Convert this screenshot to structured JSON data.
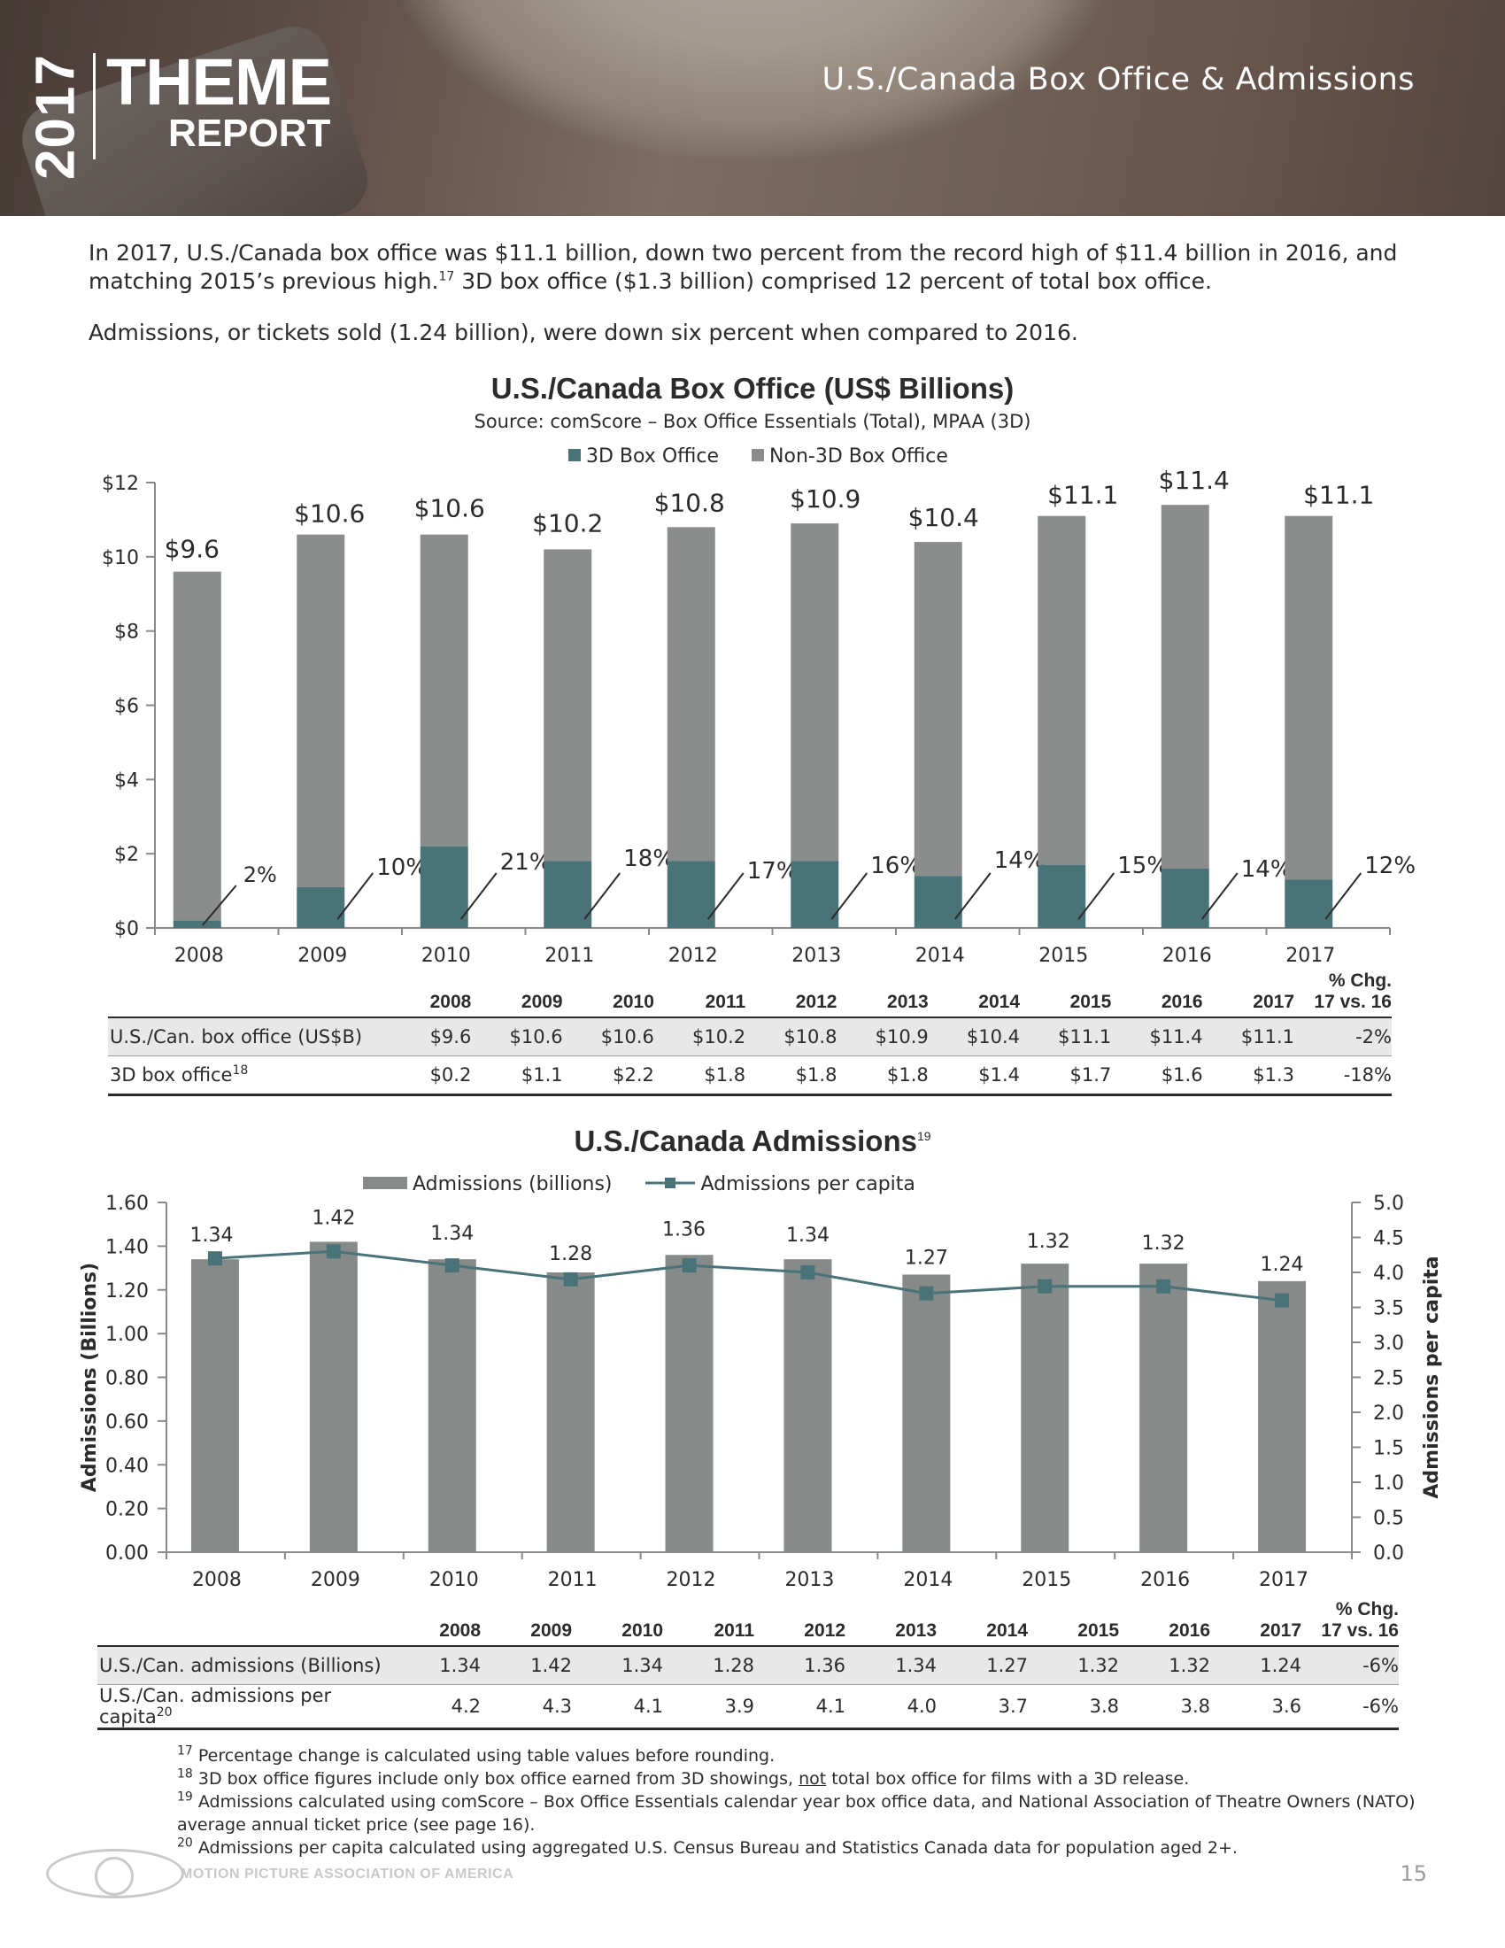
{
  "header": {
    "year": "2017",
    "logo_line1": "THEME",
    "logo_line2": "REPORT",
    "section_title": "U.S./Canada Box Office & Admissions"
  },
  "intro": {
    "p1_a": "In 2017, U.S./Canada box office was $11.1 billion, down two percent from the record high of $11.4 billion in 2016, and matching 2015’s previous high.",
    "p1_sup": "17",
    "p1_b": " 3D box office ($1.3 billion) comprised 12 percent of total box office.",
    "p2": "Admissions, or tickets sold (1.24 billion), were down six percent when compared to 2016."
  },
  "chart_data": [
    {
      "type": "bar",
      "stacked": true,
      "title": "U.S./Canada Box Office (US$ Billions)",
      "subtitle": "Source: comScore – Box Office Essentials (Total), MPAA (3D)",
      "categories": [
        "2008",
        "2009",
        "2010",
        "2011",
        "2012",
        "2013",
        "2014",
        "2015",
        "2016",
        "2017"
      ],
      "series": [
        {
          "name": "3D Box Office",
          "color": "#4a7378",
          "values": [
            0.2,
            1.1,
            2.2,
            1.8,
            1.8,
            1.8,
            1.4,
            1.7,
            1.6,
            1.3
          ]
        },
        {
          "name": "Non-3D Box Office",
          "color": "#8a8d8c",
          "values": [
            9.4,
            9.5,
            8.4,
            8.4,
            9.0,
            9.1,
            9.0,
            9.4,
            9.8,
            9.8
          ]
        }
      ],
      "totals": [
        9.6,
        10.6,
        10.6,
        10.2,
        10.8,
        10.9,
        10.4,
        11.1,
        11.4,
        11.1
      ],
      "total_labels": [
        "$9.6",
        "$10.6",
        "$10.6",
        "$10.2",
        "$10.8",
        "$10.9",
        "$10.4",
        "$11.1",
        "$11.4",
        "$11.1"
      ],
      "share_3d_labels": [
        "2%",
        "10%",
        "21%",
        "18%",
        "17%",
        "16%",
        "14%",
        "15%",
        "14%",
        "12%"
      ],
      "ylim": [
        0,
        12
      ],
      "yticks": [
        "$0",
        "$2",
        "$4",
        "$6",
        "$8",
        "$10",
        "$12"
      ],
      "legend_position": "top-center"
    },
    {
      "type": "bar+line",
      "title": "U.S./Canada Admissions",
      "title_sup": "19",
      "categories": [
        "2008",
        "2009",
        "2010",
        "2011",
        "2012",
        "2013",
        "2014",
        "2015",
        "2016",
        "2017"
      ],
      "series": [
        {
          "name": "Admissions (billions)",
          "type": "bar",
          "axis": "left",
          "color": "#868a89",
          "values": [
            1.34,
            1.42,
            1.34,
            1.28,
            1.36,
            1.34,
            1.27,
            1.32,
            1.32,
            1.24
          ],
          "labels": [
            "1.34",
            "1.42",
            "1.34",
            "1.28",
            "1.36",
            "1.34",
            "1.27",
            "1.32",
            "1.32",
            "1.24"
          ]
        },
        {
          "name": "Admissions per capita",
          "type": "line",
          "axis": "right",
          "color": "#4a7378",
          "values": [
            4.2,
            4.3,
            4.1,
            3.9,
            4.1,
            4.0,
            3.7,
            3.8,
            3.8,
            3.6
          ]
        }
      ],
      "ylabel_left": "Admissions (Billions)",
      "ylabel_right": "Admissions per capita",
      "ylim_left": [
        0,
        1.6
      ],
      "ylim_right": [
        0,
        5.0
      ],
      "yticks_left": [
        "0.00",
        "0.20",
        "0.40",
        "0.60",
        "0.80",
        "1.00",
        "1.20",
        "1.40",
        "1.60"
      ],
      "yticks_right": [
        "0.0",
        "0.5",
        "1.0",
        "1.5",
        "2.0",
        "2.5",
        "3.0",
        "3.5",
        "4.0",
        "4.5",
        "5.0"
      ],
      "legend_position": "top-center"
    }
  ],
  "table1": {
    "header_years": [
      "2008",
      "2009",
      "2010",
      "2011",
      "2012",
      "2013",
      "2014",
      "2015",
      "2016",
      "2017"
    ],
    "chg_line1": "% Chg.",
    "chg_line2": "17 vs. 16",
    "rows": [
      {
        "label": "U.S./Can. box office (US$B)",
        "sup": "",
        "values": [
          "$9.6",
          "$10.6",
          "$10.6",
          "$10.2",
          "$10.8",
          "$10.9",
          "$10.4",
          "$11.1",
          "$11.4",
          "$11.1"
        ],
        "chg": "-2%"
      },
      {
        "label": "3D box office",
        "sup": "18",
        "values": [
          "$0.2",
          "$1.1",
          "$2.2",
          "$1.8",
          "$1.8",
          "$1.8",
          "$1.4",
          "$1.7",
          "$1.6",
          "$1.3"
        ],
        "chg": "-18%"
      }
    ]
  },
  "table2": {
    "header_years": [
      "2008",
      "2009",
      "2010",
      "2011",
      "2012",
      "2013",
      "2014",
      "2015",
      "2016",
      "2017"
    ],
    "chg_line1": "% Chg.",
    "chg_line2": "17 vs. 16",
    "rows": [
      {
        "label": "U.S./Can. admissions (Billions)",
        "sup": "",
        "values": [
          "1.34",
          "1.42",
          "1.34",
          "1.28",
          "1.36",
          "1.34",
          "1.27",
          "1.32",
          "1.32",
          "1.24"
        ],
        "chg": "-6%"
      },
      {
        "label": "U.S./Can. admissions per capita",
        "sup": "20",
        "values": [
          "4.2",
          "4.3",
          "4.1",
          "3.9",
          "4.1",
          "4.0",
          "3.7",
          "3.8",
          "3.8",
          "3.6"
        ],
        "chg": "-6%"
      }
    ]
  },
  "footnotes": [
    {
      "num": "17",
      "text": " Percentage change is calculated using table values before rounding."
    },
    {
      "num": "18",
      "text_a": " 3D box office figures include only box office earned from 3D showings, ",
      "text_u": "not",
      "text_b": " total box office for films with a 3D release."
    },
    {
      "num": "19",
      "text": " Admissions calculated using comScore – Box Office Essentials calendar year box office data, and National Association of Theatre Owners (NATO) average annual ticket price (see page 16)."
    },
    {
      "num": "20",
      "text": " Admissions per capita calculated using aggregated U.S. Census Bureau and Statistics Canada data for population aged 2+."
    }
  ],
  "footer": {
    "org_name": "MOTION PICTURE ASSOCIATION OF AMERICA",
    "page_number": "15"
  }
}
